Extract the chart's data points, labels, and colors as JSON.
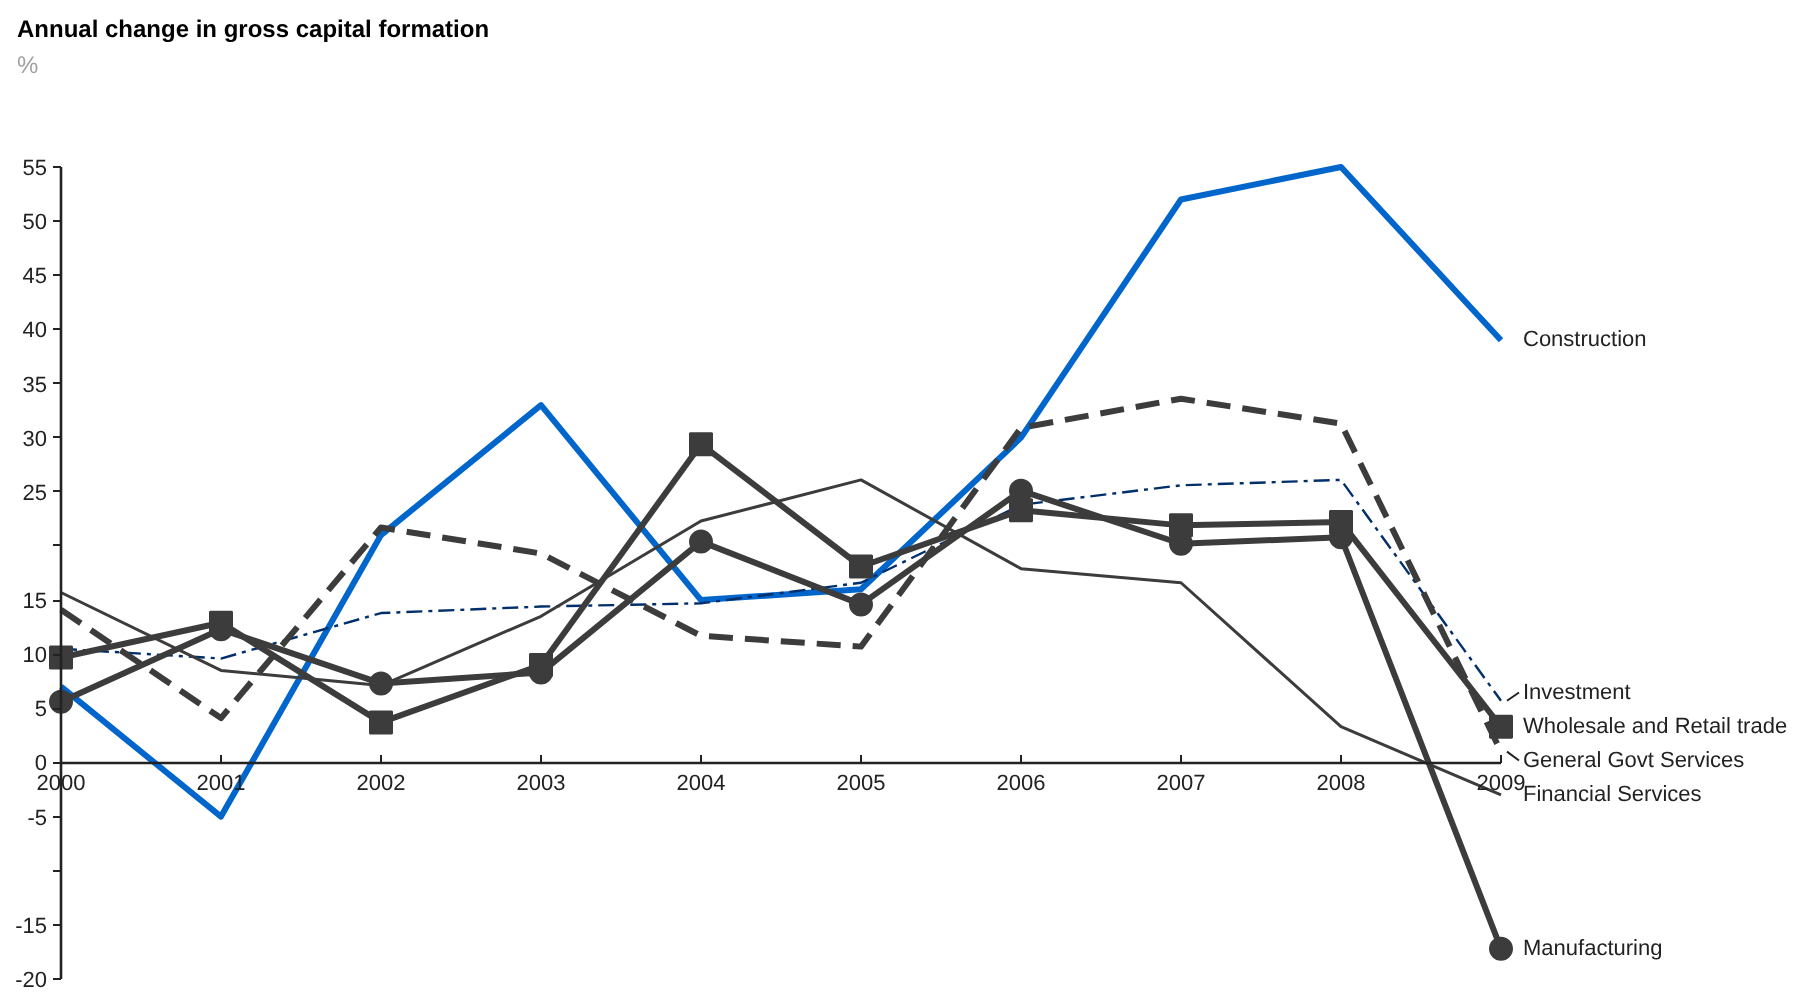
{
  "chart_data": {
    "type": "line",
    "title": "Annual change in gross capital formation",
    "subtitle": "%",
    "x": [
      2000,
      2001,
      2002,
      2003,
      2004,
      2005,
      2006,
      2007,
      2008,
      2009
    ],
    "xlim": [
      2000,
      2009
    ],
    "xticks": [
      2000,
      2001,
      2002,
      2003,
      2004,
      2005,
      2006,
      2007,
      2008,
      2009
    ],
    "ylim": [
      -20,
      55
    ],
    "yticks": [
      -20,
      -15,
      {
        "value": -10,
        "label": null
      },
      -5,
      0,
      5,
      10,
      15,
      {
        "value": 20,
        "label": null
      },
      25,
      30,
      35,
      40,
      45,
      50,
      55
    ],
    "series": [
      {
        "name": "Construction",
        "color": "#0066cc",
        "marker": "none",
        "line_style": "solid",
        "values": [
          7,
          -5,
          21,
          33,
          15,
          16,
          30,
          52,
          55,
          39
        ]
      },
      {
        "name": "Investment",
        "color": "#002f6c",
        "marker": "none",
        "line_style": "dashdot",
        "values": [
          10.5,
          9.6,
          13.8,
          14.4,
          14.7,
          16.6,
          23.8,
          25.6,
          26.1,
          5.7
        ]
      },
      {
        "name": "Wholesale and Retail trade",
        "color": "#3c3c3c",
        "marker": "square",
        "line_style": "solid",
        "values": [
          9.7,
          12.9,
          3.7,
          9,
          29.4,
          18.1,
          23.3,
          21.9,
          22.2,
          3.3
        ]
      },
      {
        "name": "General Govt Services",
        "color": "#3c3c3c",
        "marker": "none",
        "line_style": "dashed",
        "values": [
          14.1,
          4.1,
          21.7,
          19.3,
          11.7,
          10.7,
          30.9,
          33.6,
          31.3,
          1
        ]
      },
      {
        "name": "Financial Services",
        "color": "#3c3c3c",
        "marker": "none",
        "line_style": "solid",
        "values": [
          15.7,
          8.5,
          7.1,
          13.5,
          22.3,
          26.1,
          17.9,
          16.6,
          3.3,
          -3
        ]
      },
      {
        "name": "Manufacturing",
        "color": "#3c3c3c",
        "marker": "circle",
        "line_style": "solid",
        "values": [
          5.6,
          12.3,
          7.3,
          8.3,
          20.4,
          14.6,
          25.1,
          20.2,
          20.8,
          -17.2
        ]
      }
    ]
  }
}
